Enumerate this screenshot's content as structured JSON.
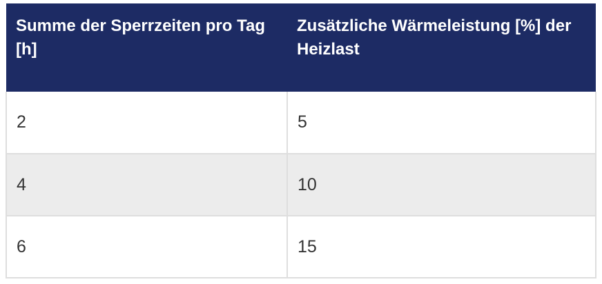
{
  "table": {
    "columns": [
      {
        "header": "Summe der Sperrzeiten pro Tag [h]"
      },
      {
        "header": "Zusätzliche Wärmeleistung [%] der Heizlast"
      }
    ],
    "rows": [
      {
        "sperrzeiten": "2",
        "waermeleistung": "5"
      },
      {
        "sperrzeiten": "4",
        "waermeleistung": "10"
      },
      {
        "sperrzeiten": "6",
        "waermeleistung": "15"
      }
    ],
    "colors": {
      "header_bg": "#1d2b64",
      "header_text": "#ffffff",
      "row_bg": "#ffffff",
      "row_alt_bg": "#ececec",
      "border": "#dedede",
      "body_text": "#333333"
    }
  }
}
